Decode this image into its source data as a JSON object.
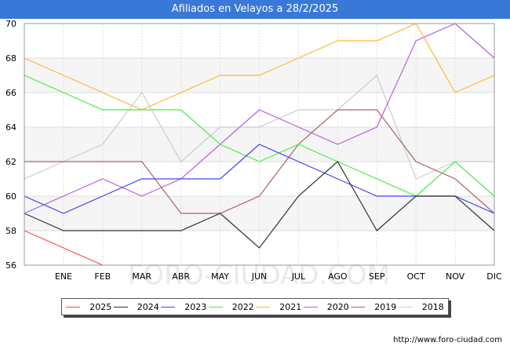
{
  "header": {
    "title": "Afiliados en Velayos a 28/2/2025"
  },
  "footer": {
    "credit": "http://www.foro-ciudad.com"
  },
  "watermark": "FORO-CIUDAD.COM",
  "chart_data": {
    "type": "line",
    "title": "Afiliados en Velayos a 28/2/2025",
    "xlabel": "",
    "ylabel": "",
    "categories": [
      "",
      "ENE",
      "FEB",
      "MAR",
      "ABR",
      "MAY",
      "JUN",
      "JUL",
      "AGO",
      "SEP",
      "OCT",
      "NOV",
      "DIC"
    ],
    "ylim": [
      56,
      70
    ],
    "yticks": [
      "56",
      "58",
      "60",
      "62",
      "64",
      "66",
      "68",
      "70"
    ],
    "grid": true,
    "legend_position": "bottom",
    "series": [
      {
        "name": "2025",
        "color": "#ff4b4b",
        "values": [
          58,
          57,
          56,
          null,
          null,
          null,
          null,
          null,
          null,
          null,
          null,
          null,
          null
        ]
      },
      {
        "name": "2024",
        "color": "#333333",
        "values": [
          59,
          58,
          58,
          58,
          58,
          59,
          57,
          60,
          62,
          58,
          60,
          60,
          58
        ]
      },
      {
        "name": "2023",
        "color": "#4444ee",
        "values": [
          60,
          59,
          60,
          61,
          61,
          61,
          63,
          62,
          61,
          60,
          60,
          60,
          59
        ]
      },
      {
        "name": "2022",
        "color": "#44ee44",
        "values": [
          67,
          66,
          65,
          65,
          65,
          63,
          62,
          63,
          62,
          61,
          60,
          62,
          60
        ]
      },
      {
        "name": "2021",
        "color": "#ffb733",
        "values": [
          68,
          67,
          66,
          65,
          66,
          67,
          67,
          68,
          69,
          69,
          70,
          66,
          67
        ]
      },
      {
        "name": "2020",
        "color": "#b95ee0",
        "values": [
          59,
          60,
          61,
          60,
          61,
          63,
          65,
          64,
          63,
          64,
          69,
          70,
          68
        ]
      },
      {
        "name": "2019",
        "color": "#b06060",
        "values": [
          62,
          62,
          62,
          62,
          59,
          59,
          60,
          63,
          65,
          65,
          62,
          61,
          59
        ]
      },
      {
        "name": "2018",
        "color": "#cccccc",
        "values": [
          61,
          62,
          63,
          66,
          62,
          64,
          64,
          65,
          65,
          67,
          61,
          62,
          62
        ]
      }
    ]
  }
}
